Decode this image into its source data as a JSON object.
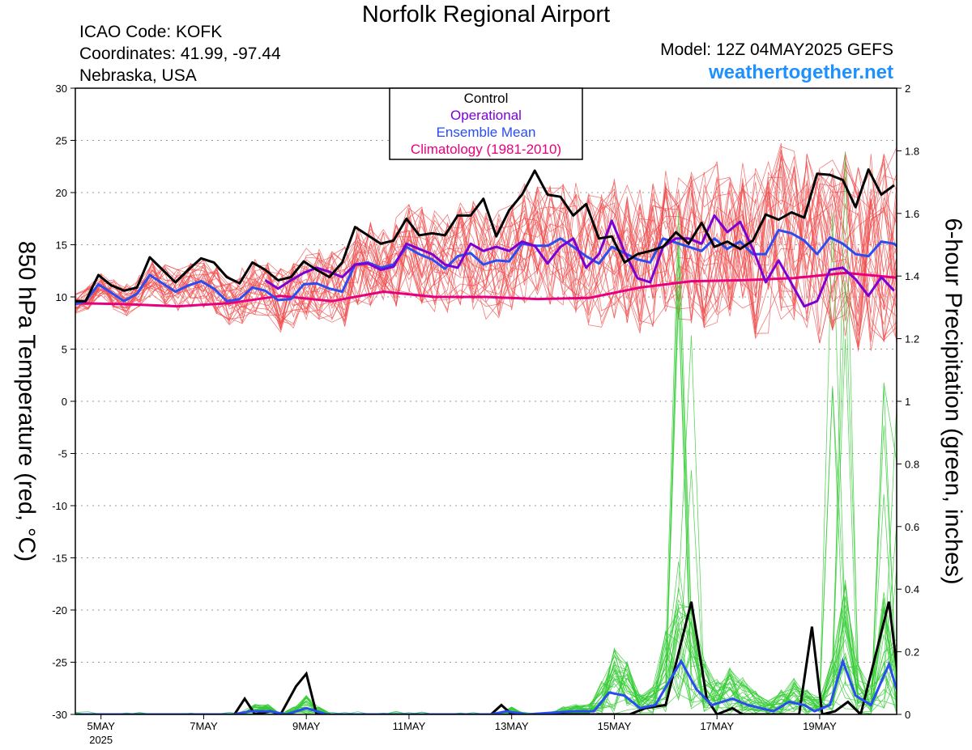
{
  "header": {
    "title": "Norfolk Regional Airport",
    "icao": "ICAO Code: KOFK",
    "coords": "Coordinates: 41.99, -97.44",
    "region": "Nebraska, USA",
    "model": "Model: 12Z 04MAY2025 GEFS",
    "site": "weathertogether.net"
  },
  "colors": {
    "members": "#f04c4c",
    "precip_members": "#33cc33",
    "control": "#000000",
    "operational": "#7b00d4",
    "ensemble_mean": "#2a4cf0",
    "climatology": "#e6007e",
    "site": "#1e90ff"
  },
  "chart_data": {
    "type": "line",
    "xlabel": "",
    "ylabel_left": "850 hPa Temperature (red, °C)",
    "ylabel_right": "6-hour Precipitation (green, inches)",
    "ylim_left": [
      -30,
      30
    ],
    "ylim_right": [
      0,
      2
    ],
    "yticks_left": [
      "30",
      "25",
      "20",
      "15",
      "10",
      "5",
      "0",
      "-5",
      "-10",
      "-15",
      "-20",
      "-25",
      "-30"
    ],
    "yticks_right": [
      "2",
      "1.8",
      "1.6",
      "1.4",
      "1.2",
      "1",
      "0.8",
      "0.6",
      "0.4",
      "0.2",
      "0"
    ],
    "x_range_days": [
      4.5,
      20.5
    ],
    "xticks": [
      {
        "day": 5,
        "label": "5MAY"
      },
      {
        "day": 7,
        "label": "7MAY"
      },
      {
        "day": 9,
        "label": "9MAY"
      },
      {
        "day": 11,
        "label": "11MAY"
      },
      {
        "day": 13,
        "label": "13MAY"
      },
      {
        "day": 15,
        "label": "15MAY"
      },
      {
        "day": 17,
        "label": "17MAY"
      },
      {
        "day": 19,
        "label": "19MAY"
      }
    ],
    "year_label": "2025",
    "grid": "dotted horizontal",
    "legend": {
      "placement": "top-center",
      "entries": [
        {
          "label": "Control",
          "color": "#000000"
        },
        {
          "label": "Operational",
          "color": "#7b00d4"
        },
        {
          "label": "Ensemble Mean",
          "color": "#2a4cf0"
        },
        {
          "label": "Climatology (1981-2010)",
          "color": "#e6007e"
        }
      ]
    },
    "temperature_series": [
      {
        "name": "Control",
        "color": "#000000",
        "width": 3,
        "points": [
          [
            4.5,
            9.6
          ],
          [
            4.7,
            9.6
          ],
          [
            4.95,
            12.1
          ],
          [
            5.2,
            11.1
          ],
          [
            5.45,
            10.6
          ],
          [
            5.7,
            10.9
          ],
          [
            5.95,
            13.8
          ],
          [
            6.2,
            12.6
          ],
          [
            6.45,
            11.4
          ],
          [
            6.7,
            12.6
          ],
          [
            6.95,
            13.7
          ],
          [
            7.2,
            13.3
          ],
          [
            7.45,
            11.9
          ],
          [
            7.7,
            11.3
          ],
          [
            7.95,
            13.3
          ],
          [
            8.2,
            12.6
          ],
          [
            8.45,
            11.6
          ],
          [
            8.7,
            11.9
          ],
          [
            8.95,
            13.4
          ],
          [
            9.2,
            12.6
          ],
          [
            9.45,
            11.9
          ],
          [
            9.7,
            13.3
          ],
          [
            9.95,
            16.7
          ],
          [
            10.2,
            15.9
          ],
          [
            10.45,
            15.1
          ],
          [
            10.7,
            15.4
          ],
          [
            10.95,
            17.5
          ],
          [
            11.2,
            15.9
          ],
          [
            11.45,
            16.1
          ],
          [
            11.7,
            15.9
          ],
          [
            11.95,
            17.8
          ],
          [
            12.2,
            17.8
          ],
          [
            12.45,
            19.4
          ],
          [
            12.7,
            15.8
          ],
          [
            12.95,
            18.3
          ],
          [
            13.2,
            19.8
          ],
          [
            13.45,
            22.1
          ],
          [
            13.7,
            19.8
          ],
          [
            13.95,
            19.6
          ],
          [
            14.2,
            17.8
          ],
          [
            14.45,
            18.9
          ],
          [
            14.7,
            15.6
          ],
          [
            14.95,
            15.8
          ],
          [
            15.2,
            13.3
          ],
          [
            15.45,
            14.1
          ],
          [
            15.7,
            14.4
          ],
          [
            15.95,
            14.8
          ],
          [
            16.2,
            16.2
          ],
          [
            16.45,
            15.1
          ],
          [
            16.7,
            17.1
          ],
          [
            16.95,
            14.8
          ],
          [
            17.2,
            15.3
          ],
          [
            17.45,
            14.6
          ],
          [
            17.7,
            15.4
          ],
          [
            17.95,
            17.9
          ],
          [
            18.2,
            17.4
          ],
          [
            18.45,
            18.1
          ],
          [
            18.7,
            17.6
          ],
          [
            18.95,
            21.8
          ],
          [
            19.2,
            21.7
          ],
          [
            19.45,
            21.2
          ],
          [
            19.7,
            18.6
          ],
          [
            19.95,
            22.2
          ],
          [
            20.2,
            19.8
          ],
          [
            20.45,
            20.7
          ]
        ]
      },
      {
        "name": "Operational",
        "color": "#7b00d4",
        "width": 3,
        "points": [
          [
            8.2,
            11.6
          ],
          [
            8.45,
            10.8
          ],
          [
            8.7,
            11.6
          ],
          [
            8.95,
            12.3
          ],
          [
            9.2,
            12.8
          ],
          [
            9.45,
            12.4
          ],
          [
            9.7,
            11.9
          ],
          [
            9.95,
            13.1
          ],
          [
            10.2,
            13.2
          ],
          [
            10.45,
            12.6
          ],
          [
            10.7,
            12.9
          ],
          [
            10.95,
            15.1
          ],
          [
            11.2,
            14.6
          ],
          [
            11.45,
            14.1
          ],
          [
            11.7,
            13.1
          ],
          [
            11.95,
            12.8
          ],
          [
            12.2,
            15.1
          ],
          [
            12.45,
            14.4
          ],
          [
            12.7,
            14.8
          ],
          [
            12.95,
            14.4
          ],
          [
            13.2,
            15.3
          ],
          [
            13.45,
            14.9
          ],
          [
            13.7,
            13.2
          ],
          [
            13.95,
            14.8
          ],
          [
            14.2,
            15.6
          ],
          [
            14.45,
            12.8
          ],
          [
            14.7,
            14.1
          ],
          [
            14.95,
            17.3
          ],
          [
            15.2,
            14.3
          ],
          [
            15.45,
            11.8
          ],
          [
            15.7,
            11.4
          ],
          [
            15.95,
            14.8
          ],
          [
            16.2,
            15.6
          ],
          [
            16.45,
            15.6
          ],
          [
            16.7,
            15.1
          ],
          [
            16.95,
            17.8
          ],
          [
            17.2,
            16.2
          ],
          [
            17.45,
            17.2
          ],
          [
            17.7,
            14.6
          ],
          [
            17.95,
            11.4
          ],
          [
            18.2,
            13.5
          ],
          [
            18.45,
            11.3
          ],
          [
            18.7,
            9.1
          ],
          [
            18.95,
            9.6
          ],
          [
            19.2,
            12.6
          ],
          [
            19.45,
            12.8
          ],
          [
            19.7,
            11.7
          ],
          [
            19.95,
            10.1
          ],
          [
            20.2,
            11.9
          ],
          [
            20.45,
            10.6
          ]
        ]
      },
      {
        "name": "Ensemble Mean",
        "color": "#2a4cf0",
        "width": 3,
        "points": [
          [
            4.5,
            9.3
          ],
          [
            4.7,
            9.6
          ],
          [
            4.95,
            11.2
          ],
          [
            5.2,
            10.4
          ],
          [
            5.45,
            9.6
          ],
          [
            5.7,
            10.3
          ],
          [
            5.95,
            12.1
          ],
          [
            6.2,
            11.3
          ],
          [
            6.45,
            10.5
          ],
          [
            6.7,
            11.1
          ],
          [
            6.95,
            11.5
          ],
          [
            7.2,
            10.8
          ],
          [
            7.45,
            9.6
          ],
          [
            7.7,
            9.8
          ],
          [
            7.95,
            10.9
          ],
          [
            8.2,
            10.6
          ],
          [
            8.45,
            9.7
          ],
          [
            8.7,
            9.8
          ],
          [
            8.95,
            11.2
          ],
          [
            9.2,
            11.3
          ],
          [
            9.45,
            10.8
          ],
          [
            9.7,
            10.5
          ],
          [
            9.95,
            13.1
          ],
          [
            10.2,
            13.3
          ],
          [
            10.45,
            12.8
          ],
          [
            10.7,
            13.1
          ],
          [
            10.95,
            14.8
          ],
          [
            11.2,
            14.1
          ],
          [
            11.45,
            13.6
          ],
          [
            11.7,
            12.7
          ],
          [
            11.95,
            13.9
          ],
          [
            12.2,
            14.2
          ],
          [
            12.45,
            13.1
          ],
          [
            12.7,
            13.5
          ],
          [
            12.95,
            13.4
          ],
          [
            13.2,
            15.1
          ],
          [
            13.45,
            14.9
          ],
          [
            13.7,
            14.9
          ],
          [
            13.95,
            15.6
          ],
          [
            14.2,
            14.8
          ],
          [
            14.45,
            13.9
          ],
          [
            14.7,
            13.2
          ],
          [
            14.95,
            14.8
          ],
          [
            15.2,
            14.2
          ],
          [
            15.45,
            13.6
          ],
          [
            15.7,
            13.3
          ],
          [
            15.95,
            15.6
          ],
          [
            16.2,
            15.2
          ],
          [
            16.45,
            14.8
          ],
          [
            16.7,
            14.4
          ],
          [
            16.95,
            15.6
          ],
          [
            17.2,
            14.6
          ],
          [
            17.45,
            15.3
          ],
          [
            17.7,
            14.1
          ],
          [
            17.95,
            14.1
          ],
          [
            18.2,
            16.4
          ],
          [
            18.45,
            16.1
          ],
          [
            18.7,
            15.4
          ],
          [
            18.95,
            14.1
          ],
          [
            19.2,
            15.7
          ],
          [
            19.45,
            15.1
          ],
          [
            19.7,
            14.1
          ],
          [
            19.95,
            13.9
          ],
          [
            20.2,
            15.3
          ],
          [
            20.45,
            15.1
          ],
          [
            20.6,
            14.4
          ]
        ]
      },
      {
        "name": "Climatology (1981-2010)",
        "color": "#e6007e",
        "width": 3,
        "points": [
          [
            4.5,
            9.4
          ],
          [
            5.5,
            9.3
          ],
          [
            6.5,
            9.1
          ],
          [
            7.5,
            9.4
          ],
          [
            8.5,
            10.1
          ],
          [
            9.5,
            9.6
          ],
          [
            10.5,
            10.5
          ],
          [
            11.5,
            10.0
          ],
          [
            12.5,
            10.0
          ],
          [
            13.5,
            9.8
          ],
          [
            14.5,
            9.9
          ],
          [
            15.5,
            10.9
          ],
          [
            16.5,
            11.5
          ],
          [
            17.5,
            11.6
          ],
          [
            18.5,
            11.8
          ],
          [
            19.5,
            12.3
          ],
          [
            20.6,
            11.8
          ]
        ]
      }
    ],
    "precip_series": [
      {
        "name": "Control",
        "color": "#000000",
        "width": 3,
        "points": [
          [
            4.5,
            0
          ],
          [
            7.6,
            0
          ],
          [
            7.8,
            0.05
          ],
          [
            8.0,
            0
          ],
          [
            8.3,
            0.01
          ],
          [
            8.5,
            0
          ],
          [
            8.8,
            0.09
          ],
          [
            9.0,
            0.13
          ],
          [
            9.2,
            0
          ],
          [
            12.6,
            0
          ],
          [
            12.8,
            0.03
          ],
          [
            13.0,
            0
          ],
          [
            15.3,
            0
          ],
          [
            15.6,
            0.02
          ],
          [
            16.0,
            0.03
          ],
          [
            16.5,
            0.36
          ],
          [
            16.8,
            0.05
          ],
          [
            17.0,
            0
          ],
          [
            17.3,
            0.02
          ],
          [
            17.5,
            0
          ],
          [
            18.6,
            0
          ],
          [
            18.85,
            0.28
          ],
          [
            19.05,
            0
          ],
          [
            19.3,
            0.01
          ],
          [
            19.55,
            0.04
          ],
          [
            19.8,
            0
          ],
          [
            20.35,
            0.36
          ],
          [
            20.6,
            0.02
          ]
        ]
      },
      {
        "name": "Ensemble Mean",
        "color": "#2a4cf0",
        "width": 3,
        "points": [
          [
            4.5,
            0
          ],
          [
            7.6,
            0
          ],
          [
            7.9,
            0.01
          ],
          [
            8.3,
            0.01
          ],
          [
            8.6,
            0
          ],
          [
            9.0,
            0.02
          ],
          [
            9.2,
            0.01
          ],
          [
            9.4,
            0
          ],
          [
            12.6,
            0
          ],
          [
            12.9,
            0.01
          ],
          [
            13.3,
            0
          ],
          [
            14.2,
            0.01
          ],
          [
            14.6,
            0.01
          ],
          [
            14.9,
            0.07
          ],
          [
            15.2,
            0.06
          ],
          [
            15.5,
            0.02
          ],
          [
            15.8,
            0.03
          ],
          [
            16.3,
            0.17
          ],
          [
            16.6,
            0.08
          ],
          [
            16.9,
            0.03
          ],
          [
            17.3,
            0.05
          ],
          [
            17.6,
            0.03
          ],
          [
            18.1,
            0.01
          ],
          [
            18.4,
            0.04
          ],
          [
            18.7,
            0.03
          ],
          [
            18.9,
            0.01
          ],
          [
            19.2,
            0.03
          ],
          [
            19.45,
            0.17
          ],
          [
            19.7,
            0.06
          ],
          [
            20.0,
            0.03
          ],
          [
            20.35,
            0.16
          ],
          [
            20.6,
            0.03
          ]
        ]
      }
    ]
  }
}
